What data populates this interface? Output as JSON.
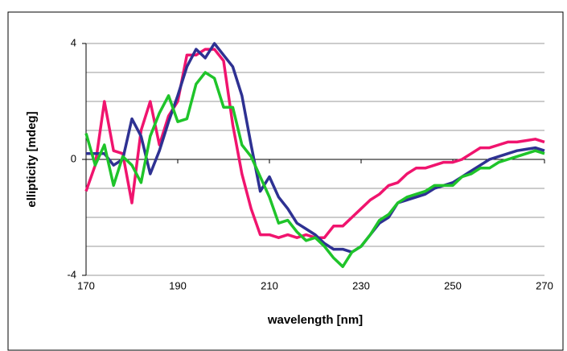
{
  "chart_data": {
    "type": "line",
    "x_label": "wavelength [nm]",
    "y_label": "ellipticity [mdeg]",
    "x": [
      170,
      172,
      174,
      176,
      178,
      180,
      182,
      184,
      186,
      188,
      190,
      192,
      194,
      196,
      198,
      200,
      202,
      204,
      206,
      208,
      210,
      212,
      214,
      216,
      218,
      220,
      222,
      224,
      226,
      228,
      230,
      232,
      234,
      236,
      238,
      240,
      242,
      244,
      246,
      248,
      250,
      252,
      254,
      256,
      258,
      260,
      262,
      264,
      266,
      268,
      270
    ],
    "series": [
      {
        "color": "#f0146e",
        "values": [
          -1.1,
          -0.2,
          2.0,
          0.3,
          0.2,
          -1.5,
          1.0,
          2.0,
          0.5,
          1.5,
          2.0,
          3.6,
          3.6,
          3.8,
          3.8,
          3.4,
          1.2,
          -0.5,
          -1.7,
          -2.6,
          -2.6,
          -2.7,
          -2.6,
          -2.7,
          -2.6,
          -2.7,
          -2.7,
          -2.3,
          -2.3,
          -2.0,
          -1.7,
          -1.4,
          -1.2,
          -0.9,
          -0.8,
          -0.5,
          -0.3,
          -0.3,
          -0.2,
          -0.1,
          -0.1,
          0.0,
          0.2,
          0.4,
          0.4,
          0.5,
          0.6,
          0.6,
          0.65,
          0.7,
          0.6
        ]
      },
      {
        "color": "#2e3192",
        "values": [
          0.2,
          0.2,
          0.2,
          -0.2,
          0.0,
          1.4,
          0.8,
          -0.5,
          0.3,
          1.3,
          2.2,
          3.2,
          3.8,
          3.5,
          4.0,
          3.6,
          3.2,
          2.2,
          0.5,
          -1.1,
          -0.6,
          -1.3,
          -1.7,
          -2.2,
          -2.4,
          -2.6,
          -2.9,
          -3.1,
          -3.1,
          -3.2,
          -3.0,
          -2.6,
          -2.2,
          -2.0,
          -1.5,
          -1.4,
          -1.3,
          -1.2,
          -1.0,
          -0.9,
          -0.8,
          -0.6,
          -0.4,
          -0.2,
          0.0,
          0.1,
          0.2,
          0.3,
          0.35,
          0.4,
          0.3
        ]
      },
      {
        "color": "#1fc42a",
        "values": [
          0.9,
          -0.2,
          0.5,
          -0.9,
          0.1,
          -0.2,
          -0.8,
          0.8,
          1.6,
          2.2,
          1.3,
          1.4,
          2.6,
          3.0,
          2.8,
          1.8,
          1.8,
          0.5,
          0.1,
          -0.6,
          -1.3,
          -2.2,
          -2.1,
          -2.5,
          -2.8,
          -2.7,
          -3.0,
          -3.4,
          -3.7,
          -3.2,
          -3.0,
          -2.6,
          -2.1,
          -1.9,
          -1.5,
          -1.3,
          -1.2,
          -1.1,
          -0.9,
          -0.9,
          -0.9,
          -0.6,
          -0.5,
          -0.3,
          -0.3,
          -0.1,
          0.0,
          0.1,
          0.2,
          0.3,
          0.2
        ]
      }
    ],
    "xlim": [
      170,
      270
    ],
    "xticks": [
      170,
      190,
      210,
      230,
      250,
      270
    ],
    "ylim": [
      -4,
      4
    ],
    "yticks": [
      -4,
      0,
      4
    ],
    "minor_yticks": [
      -3,
      -2,
      -1,
      1,
      2,
      3
    ],
    "grid": true
  }
}
